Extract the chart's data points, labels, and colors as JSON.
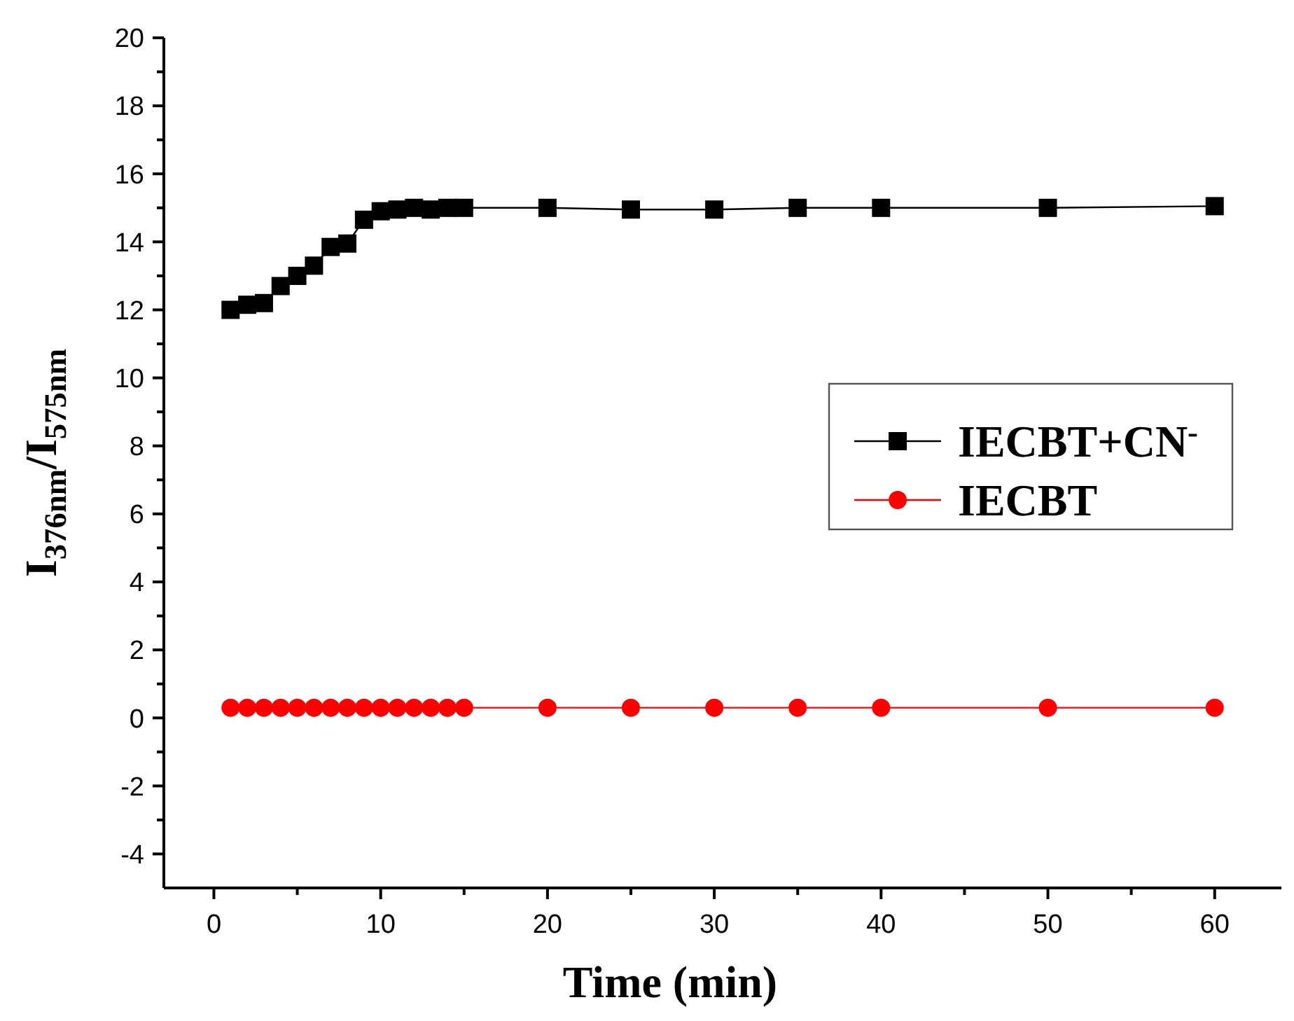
{
  "chart_data": {
    "type": "line",
    "xlabel": "Time (min)",
    "ylabel": "I$_{376nm}$/I$_{575nm}$",
    "xlim": [
      -3,
      64
    ],
    "ylim": [
      -5,
      20
    ],
    "xticks": [
      0,
      10,
      20,
      30,
      40,
      50,
      60
    ],
    "yticks": [
      -4,
      -2,
      0,
      2,
      4,
      6,
      8,
      10,
      12,
      14,
      16,
      18,
      20
    ],
    "legend": "right",
    "line_style": "solid",
    "series": [
      {
        "name": "IECBT+CN$^{-}$",
        "color": "#000000",
        "marker": "square",
        "x": [
          1,
          2,
          3,
          4,
          5,
          6,
          7,
          8,
          9,
          10,
          11,
          12,
          13,
          14,
          15,
          20,
          25,
          30,
          35,
          40,
          50,
          60
        ],
        "values": [
          12.0,
          12.15,
          12.2,
          12.7,
          13.0,
          13.3,
          13.85,
          13.95,
          14.65,
          14.9,
          14.95,
          15.0,
          14.95,
          15.0,
          15.0,
          15.0,
          14.95,
          14.95,
          15.0,
          15.0,
          15.0,
          15.05
        ]
      },
      {
        "name": "IECBT",
        "color": "#ff0000",
        "marker": "circle",
        "x": [
          1,
          2,
          3,
          4,
          5,
          6,
          7,
          8,
          9,
          10,
          11,
          12,
          13,
          14,
          15,
          20,
          25,
          30,
          35,
          40,
          50,
          60
        ],
        "values": [
          0.3,
          0.3,
          0.3,
          0.3,
          0.3,
          0.3,
          0.3,
          0.3,
          0.3,
          0.3,
          0.3,
          0.3,
          0.3,
          0.3,
          0.3,
          0.3,
          0.3,
          0.3,
          0.3,
          0.3,
          0.3,
          0.3
        ]
      }
    ]
  }
}
